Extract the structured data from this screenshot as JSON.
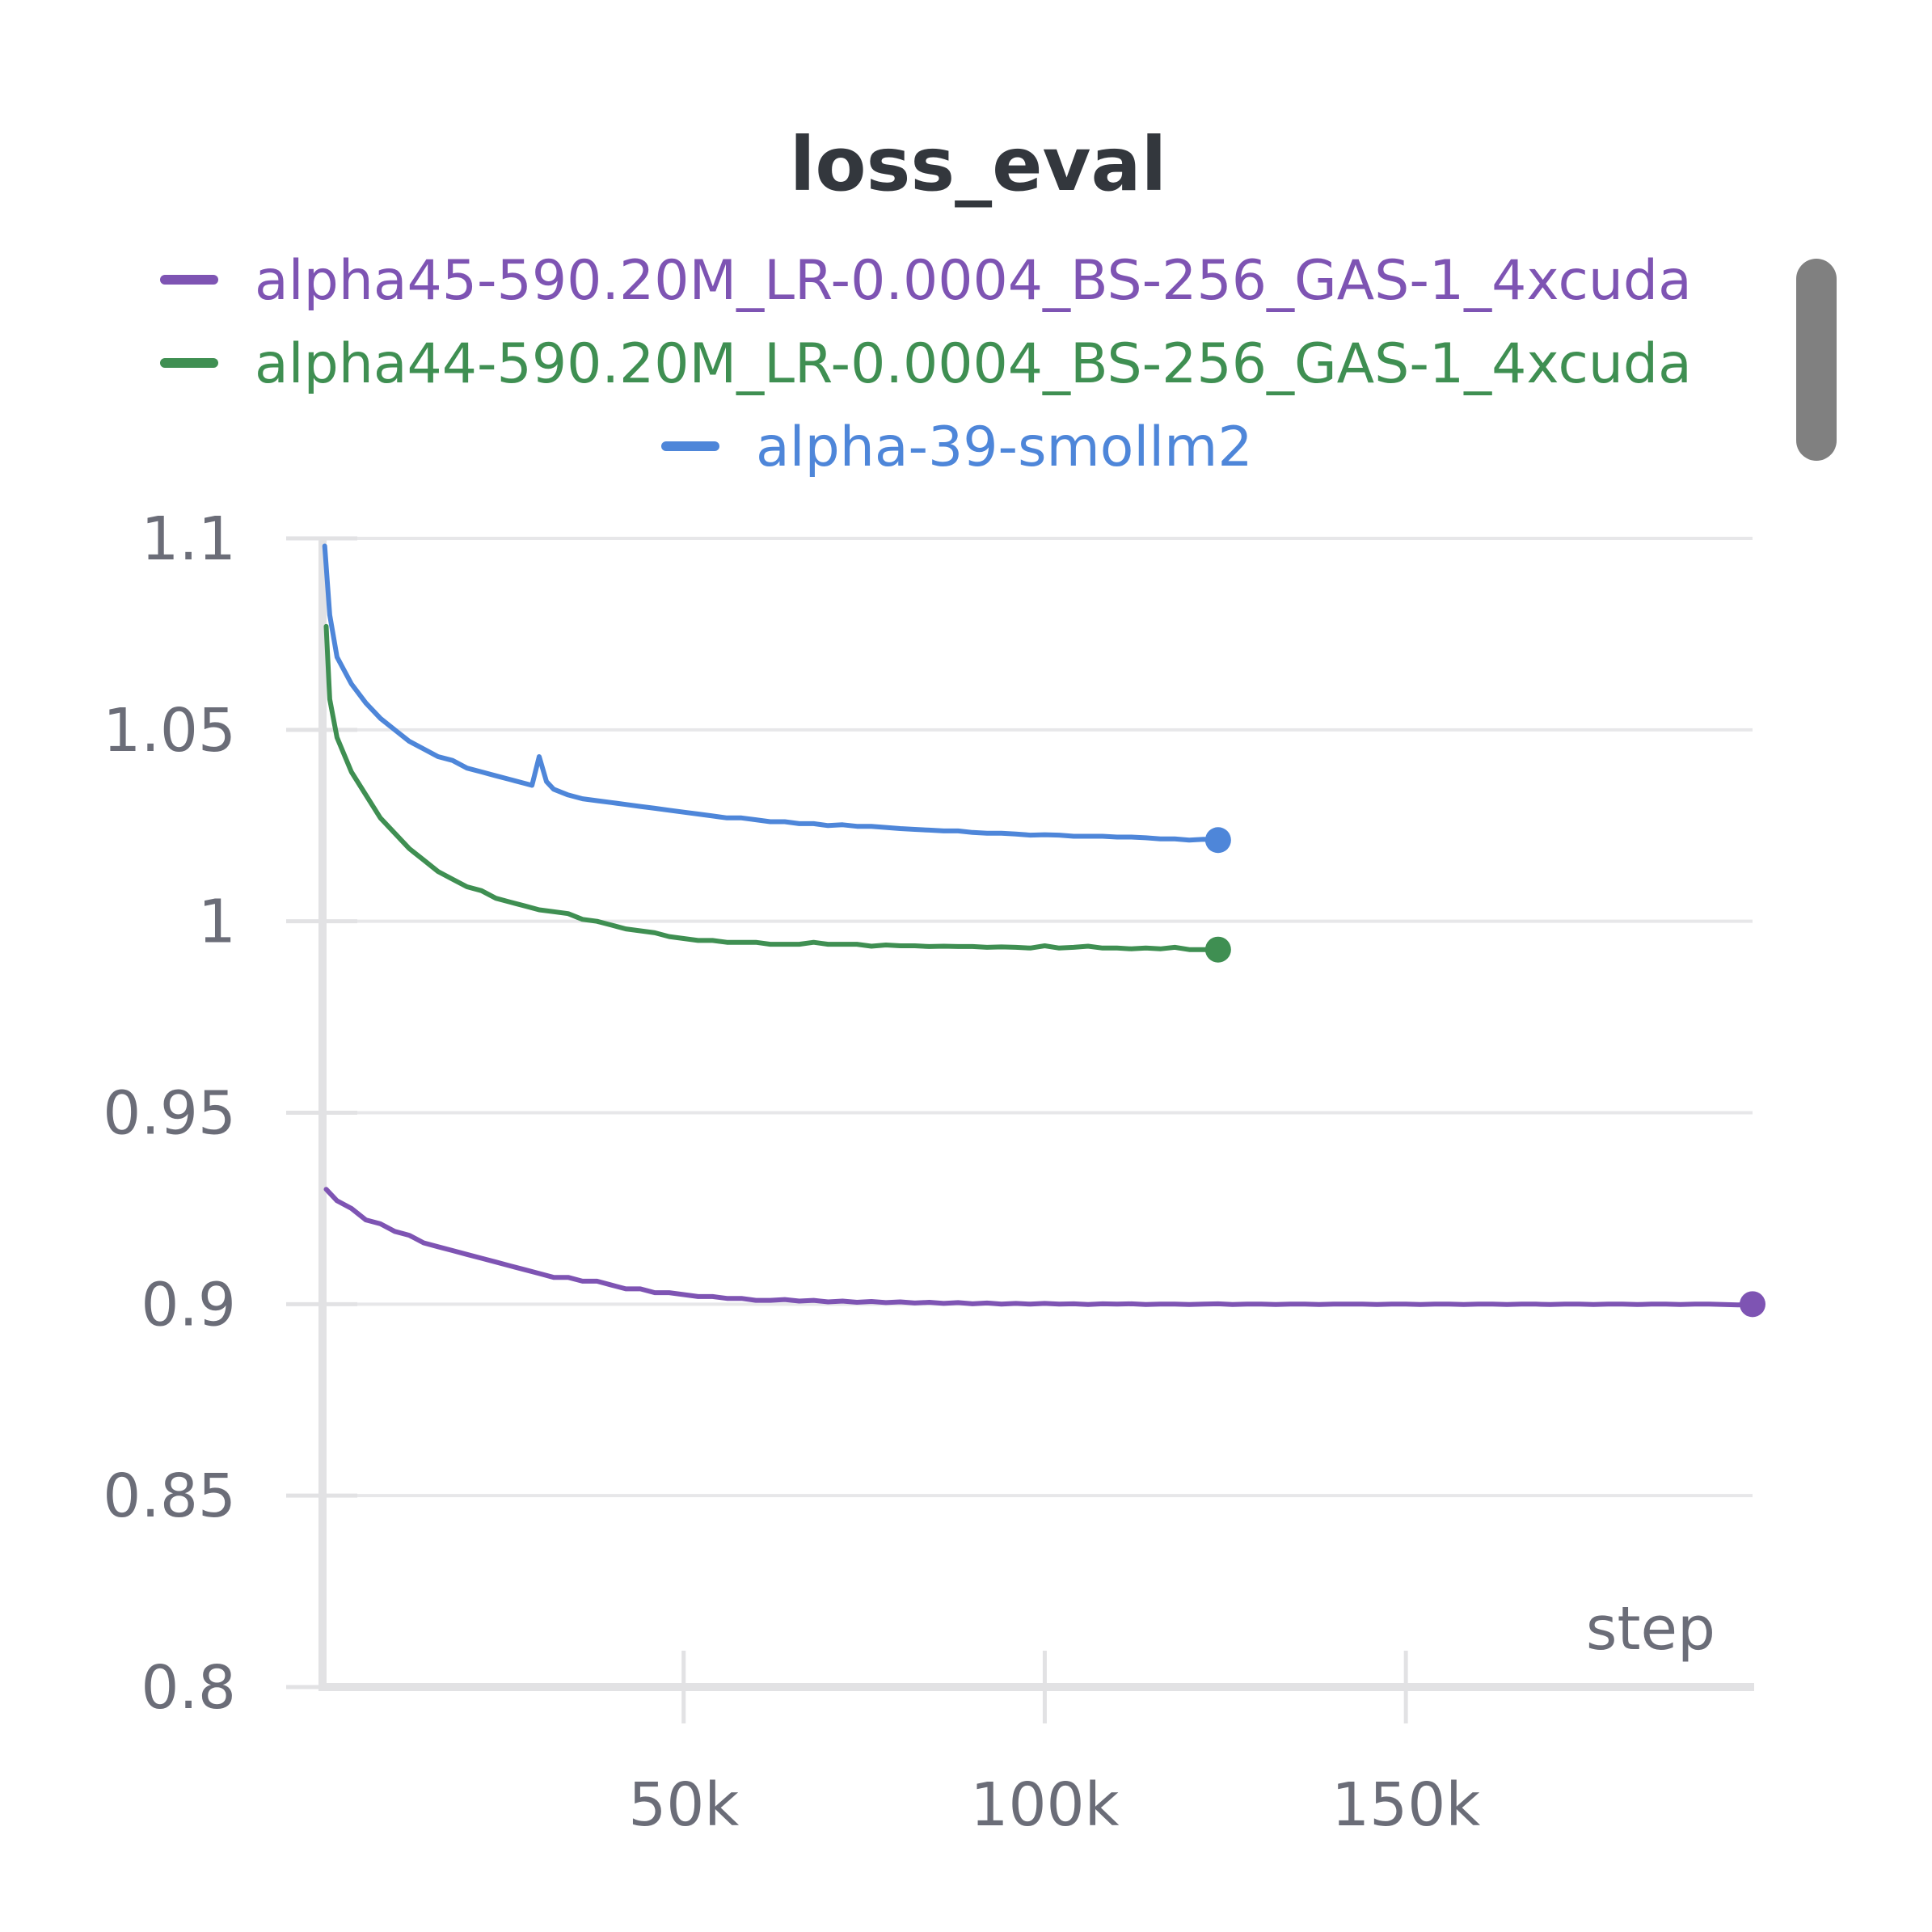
{
  "chart_data": {
    "type": "line",
    "title": "loss_eval",
    "xlabel": "step",
    "ylabel": "",
    "xlim": [
      0,
      198000
    ],
    "ylim": [
      0.8,
      1.1
    ],
    "x_ticks": [
      50000,
      100000,
      150000
    ],
    "x_tick_labels": [
      "50k",
      "100k",
      "150k"
    ],
    "y_ticks": [
      0.8,
      0.85,
      0.9,
      0.95,
      1,
      1.05,
      1.1
    ],
    "y_tick_labels": [
      "0.8",
      "0.85",
      "0.9",
      "0.95",
      "1",
      "1.05",
      "1.1"
    ],
    "grid": "horizontal",
    "legend_position": "top",
    "series": [
      {
        "name": "alpha45-590.20M_LR-0.0004_BS-256_GAS-1_4xcuda",
        "color": "#7e54b3",
        "x": [
          500,
          2000,
          4000,
          6000,
          8000,
          10000,
          12000,
          14000,
          16000,
          18000,
          20000,
          22000,
          24000,
          26000,
          28000,
          30000,
          32000,
          34000,
          36000,
          38000,
          40000,
          42000,
          44000,
          46000,
          48000,
          50000,
          52000,
          54000,
          56000,
          58000,
          60000,
          62000,
          64000,
          66000,
          68000,
          70000,
          72000,
          74000,
          76000,
          78000,
          80000,
          82000,
          84000,
          86000,
          88000,
          90000,
          92000,
          94000,
          96000,
          98000,
          100000,
          102000,
          104000,
          106000,
          108000,
          110000,
          112000,
          114000,
          116000,
          118000,
          120000,
          122000,
          124000,
          126000,
          128000,
          130000,
          132000,
          134000,
          136000,
          138000,
          140000,
          142000,
          144000,
          146000,
          148000,
          150000,
          152000,
          154000,
          156000,
          158000,
          160000,
          162000,
          164000,
          166000,
          168000,
          170000,
          172000,
          174000,
          176000,
          178000,
          180000,
          182000,
          184000,
          186000,
          188000,
          190000,
          192000,
          194000,
          196000,
          198000
        ],
        "y": [
          0.93,
          0.927,
          0.925,
          0.922,
          0.921,
          0.919,
          0.918,
          0.916,
          0.915,
          0.914,
          0.913,
          0.912,
          0.911,
          0.91,
          0.909,
          0.908,
          0.907,
          0.907,
          0.906,
          0.906,
          0.905,
          0.904,
          0.904,
          0.903,
          0.903,
          0.9025,
          0.902,
          0.902,
          0.9015,
          0.9015,
          0.901,
          0.901,
          0.9012,
          0.9008,
          0.901,
          0.9006,
          0.9008,
          0.9005,
          0.9007,
          0.9004,
          0.9006,
          0.9003,
          0.9005,
          0.9002,
          0.9004,
          0.9001,
          0.9003,
          0.9,
          0.9002,
          0.9,
          0.9002,
          0.9,
          0.9001,
          0.8999,
          0.9001,
          0.9,
          0.9001,
          0.8999,
          0.9,
          0.9,
          0.8999,
          0.9,
          0.9001,
          0.8999,
          0.9,
          0.9,
          0.8999,
          0.9,
          0.9,
          0.8999,
          0.9,
          0.9,
          0.9,
          0.8999,
          0.9,
          0.9,
          0.8999,
          0.9,
          0.9,
          0.8999,
          0.9,
          0.9,
          0.8999,
          0.9,
          0.9,
          0.8999,
          0.9,
          0.9,
          0.8999,
          0.9,
          0.9,
          0.8999,
          0.9,
          0.9,
          0.8999,
          0.9,
          0.9,
          0.8999,
          0.8998,
          0.9
        ]
      },
      {
        "name": "alpha44-590.20M_LR-0.0004_BS-256_GAS-1_4xcuda",
        "color": "#3f8f52",
        "x": [
          500,
          1000,
          2000,
          4000,
          6000,
          8000,
          10000,
          12000,
          14000,
          16000,
          18000,
          20000,
          22000,
          24000,
          26000,
          28000,
          30000,
          32000,
          34000,
          36000,
          38000,
          40000,
          42000,
          44000,
          46000,
          48000,
          50000,
          52000,
          54000,
          56000,
          58000,
          60000,
          62000,
          64000,
          66000,
          68000,
          70000,
          72000,
          74000,
          76000,
          78000,
          80000,
          82000,
          84000,
          86000,
          88000,
          90000,
          92000,
          94000,
          96000,
          98000,
          100000,
          102000,
          104000,
          106000,
          108000,
          110000,
          112000,
          114000,
          116000,
          118000,
          120000,
          122000,
          124000
        ],
        "y": [
          1.077,
          1.058,
          1.048,
          1.039,
          1.033,
          1.027,
          1.023,
          1.019,
          1.016,
          1.013,
          1.011,
          1.009,
          1.008,
          1.006,
          1.005,
          1.004,
          1.003,
          1.0025,
          1.002,
          1.0005,
          1.0,
          0.999,
          0.998,
          0.9975,
          0.997,
          0.996,
          0.9955,
          0.995,
          0.995,
          0.9945,
          0.9945,
          0.9945,
          0.994,
          0.994,
          0.994,
          0.9945,
          0.994,
          0.994,
          0.994,
          0.9935,
          0.9938,
          0.9936,
          0.9936,
          0.9934,
          0.9935,
          0.9934,
          0.9934,
          0.9932,
          0.9933,
          0.9932,
          0.993,
          0.9936,
          0.993,
          0.9932,
          0.9935,
          0.993,
          0.993,
          0.9928,
          0.993,
          0.9928,
          0.9932,
          0.9926,
          0.9926,
          0.9926
        ]
      },
      {
        "name": "alpha-39-smollm2",
        "color": "#4e86d9",
        "x": [
          300,
          1000,
          2000,
          4000,
          6000,
          8000,
          10000,
          12000,
          14000,
          16000,
          18000,
          20000,
          22000,
          24000,
          26000,
          28000,
          29000,
          30000,
          31000,
          32000,
          34000,
          36000,
          38000,
          40000,
          42000,
          44000,
          46000,
          48000,
          50000,
          52000,
          54000,
          56000,
          58000,
          60000,
          62000,
          64000,
          66000,
          68000,
          70000,
          72000,
          74000,
          76000,
          78000,
          80000,
          82000,
          84000,
          86000,
          88000,
          90000,
          92000,
          94000,
          96000,
          98000,
          100000,
          102000,
          104000,
          106000,
          108000,
          110000,
          112000,
          114000,
          116000,
          118000,
          120000,
          122000,
          124000
        ],
        "y": [
          1.098,
          1.08,
          1.069,
          1.062,
          1.057,
          1.053,
          1.05,
          1.047,
          1.045,
          1.043,
          1.042,
          1.04,
          1.039,
          1.038,
          1.037,
          1.036,
          1.0355,
          1.043,
          1.0365,
          1.0345,
          1.033,
          1.032,
          1.0315,
          1.031,
          1.0305,
          1.03,
          1.0295,
          1.029,
          1.0285,
          1.028,
          1.0275,
          1.027,
          1.027,
          1.0265,
          1.026,
          1.026,
          1.0255,
          1.0255,
          1.025,
          1.0252,
          1.0248,
          1.0248,
          1.0245,
          1.0242,
          1.024,
          1.0238,
          1.0236,
          1.0236,
          1.0232,
          1.023,
          1.023,
          1.0228,
          1.0225,
          1.0226,
          1.0225,
          1.0222,
          1.0222,
          1.0222,
          1.022,
          1.022,
          1.0218,
          1.0215,
          1.0215,
          1.0212,
          1.0214,
          1.0212
        ]
      }
    ]
  }
}
